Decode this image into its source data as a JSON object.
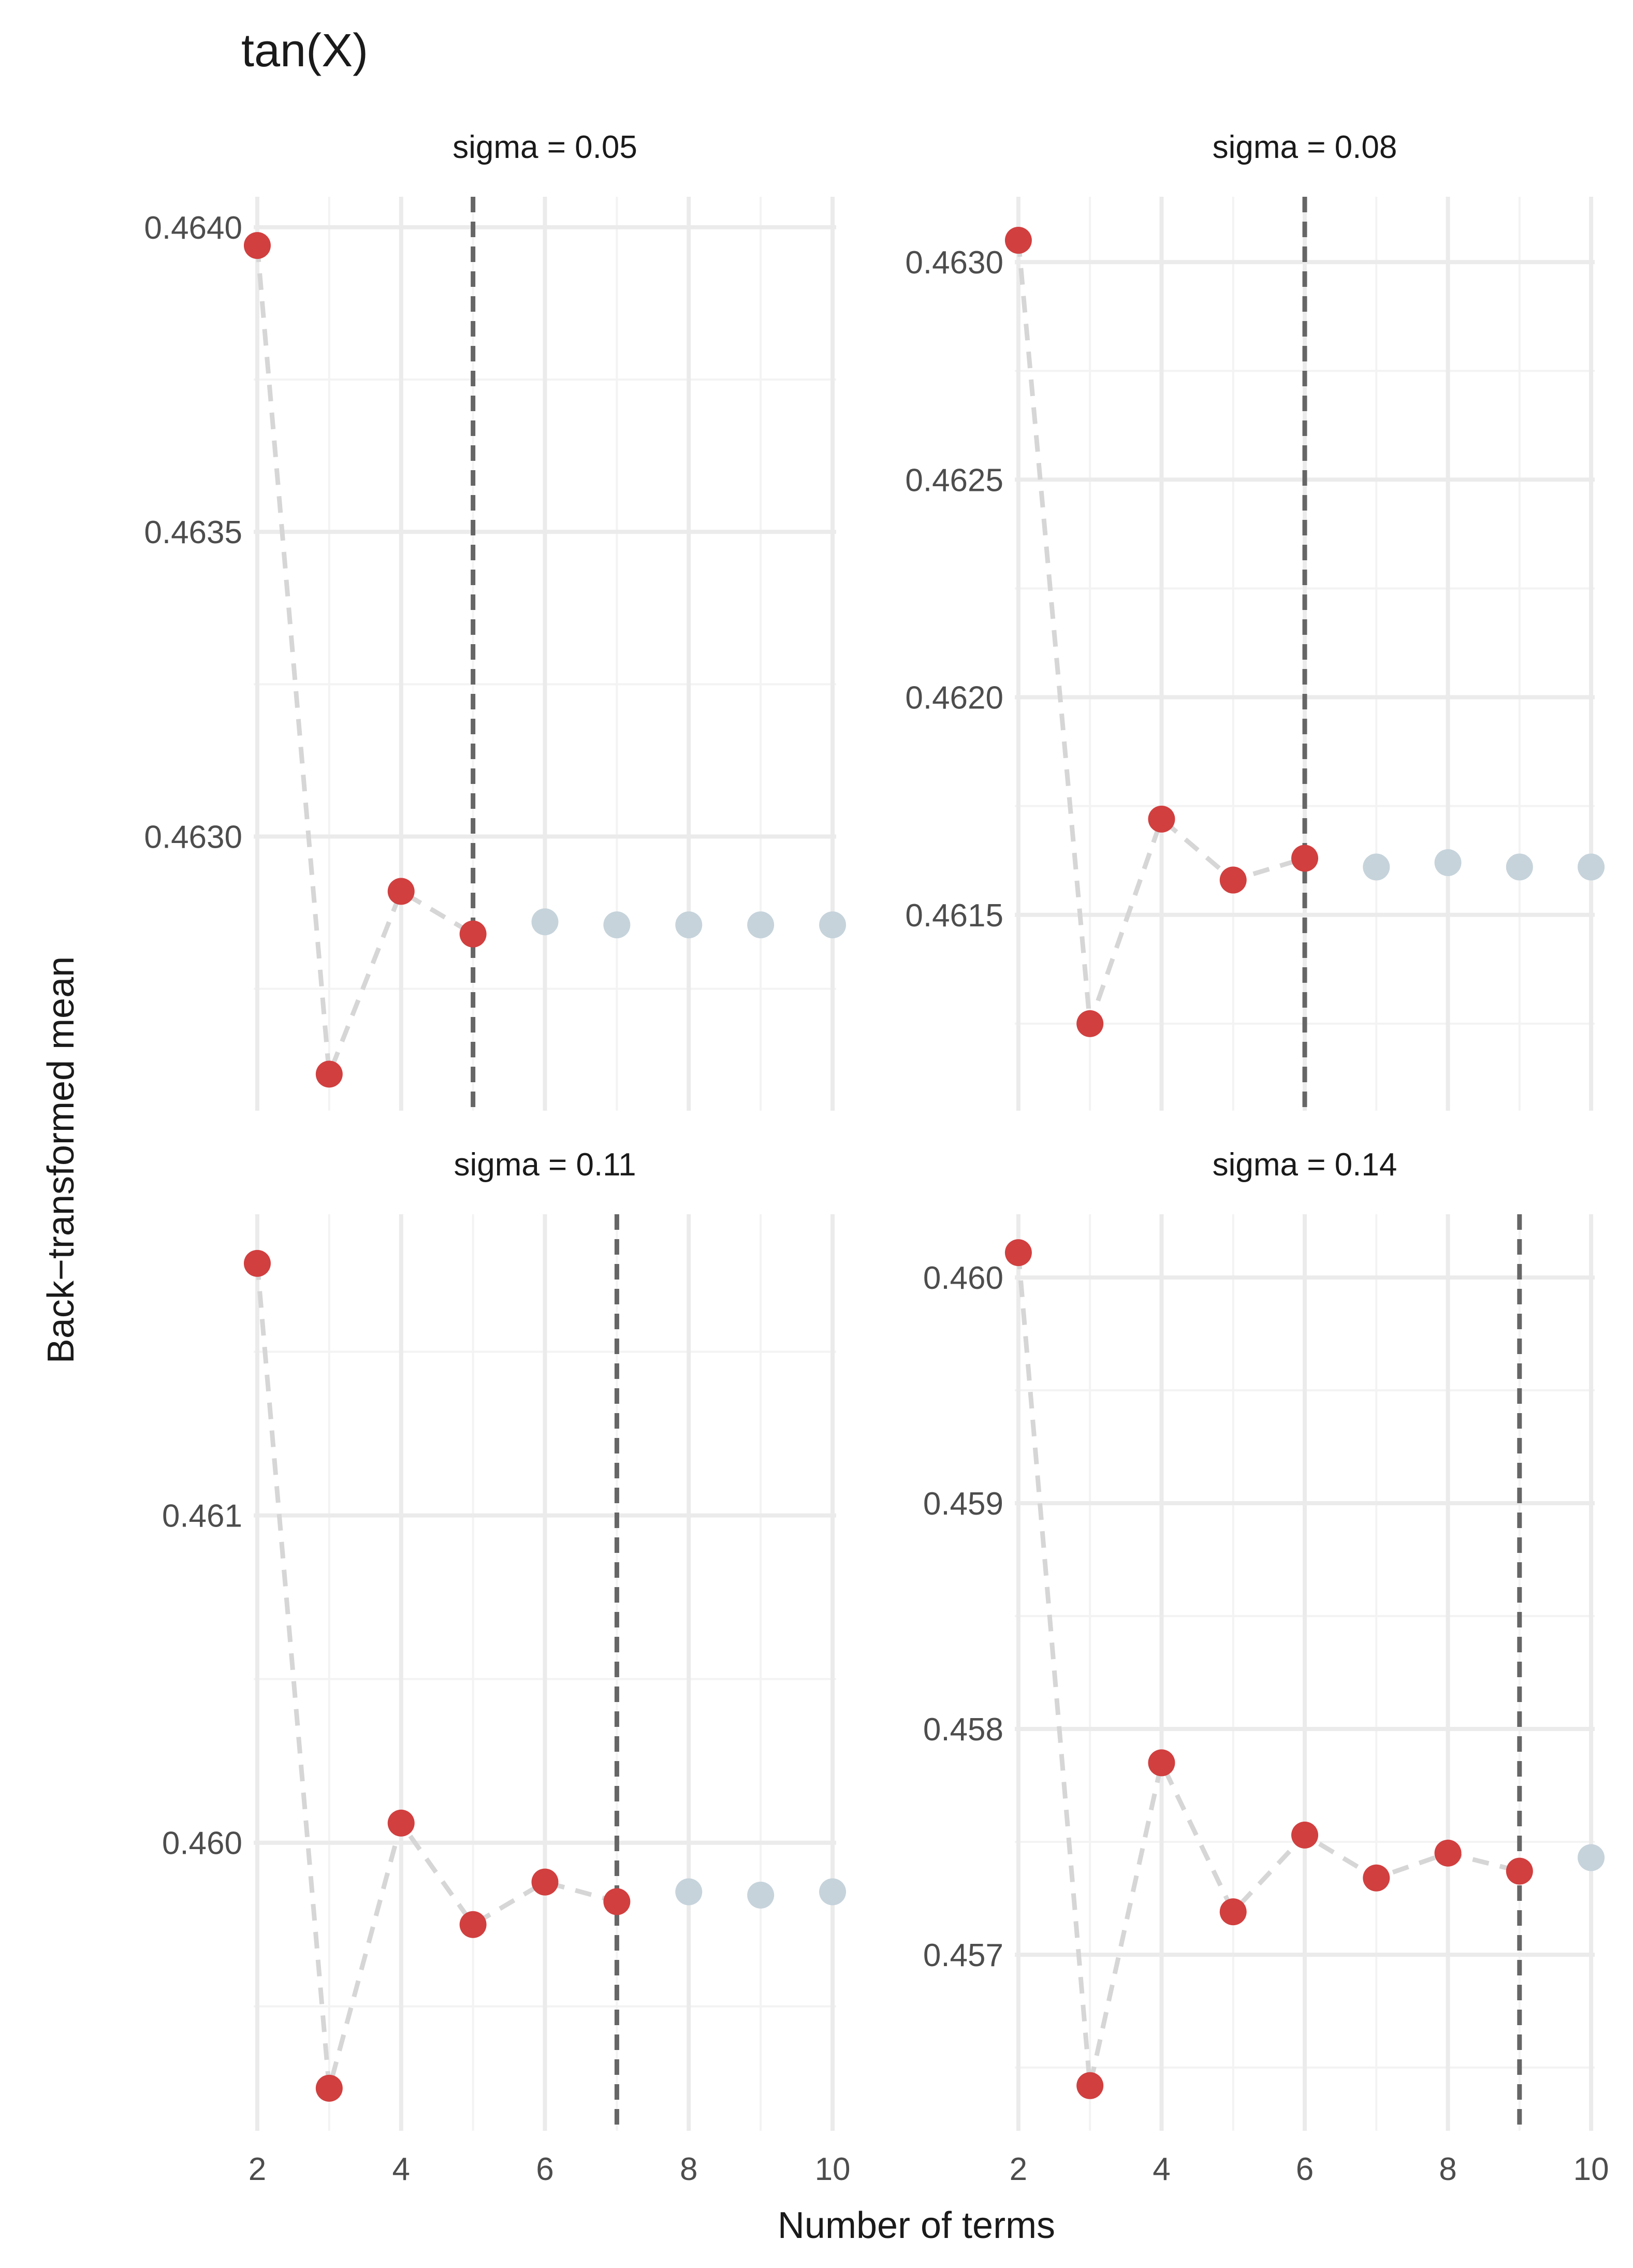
{
  "colors": {
    "highlight": "#d13f3f",
    "muted": "#c6d3db",
    "connector": "#d6d6d6",
    "cutoff": "#666666",
    "grid_major": "#ebebeb",
    "grid_minor": "#f3f3f3",
    "text": "#1a1a1a",
    "tick_text": "#4d4d4d"
  },
  "chart_data": {
    "type": "scatter",
    "title": "tan(X)",
    "xlabel": "Number of terms",
    "ylabel": "Back−transformed mean",
    "x_ticks": [
      2,
      4,
      6,
      8,
      10
    ],
    "xlim": [
      1.95,
      10.05
    ],
    "panels": [
      {
        "strip": "sigma = 0.05",
        "sigma": 0.05,
        "cutoff": 5,
        "ylim": [
          0.46255,
          0.46405
        ],
        "y_ticks": [
          0.463,
          0.4635,
          0.464
        ],
        "y_tick_labels": [
          "0.4630",
          "0.4635",
          "0.4640"
        ],
        "x": [
          2,
          3,
          4,
          5,
          6,
          7,
          8,
          9,
          10
        ],
        "y": [
          0.46397,
          0.46261,
          0.46291,
          0.46284,
          0.46286,
          0.462855,
          0.462855,
          0.462855,
          0.462855
        ]
      },
      {
        "strip": "sigma = 0.08",
        "sigma": 0.08,
        "cutoff": 6,
        "ylim": [
          0.46105,
          0.46315
        ],
        "y_ticks": [
          0.4615,
          0.462,
          0.4625,
          0.463
        ],
        "y_tick_labels": [
          "0.4615",
          "0.4620",
          "0.4625",
          "0.4630"
        ],
        "x": [
          2,
          3,
          4,
          5,
          6,
          7,
          8,
          9,
          10
        ],
        "y": [
          0.46305,
          0.46125,
          0.46172,
          0.46158,
          0.46163,
          0.46161,
          0.46162,
          0.46161,
          0.46161
        ]
      },
      {
        "strip": "sigma = 0.11",
        "sigma": 0.11,
        "cutoff": 7,
        "ylim": [
          0.45912,
          0.46192
        ],
        "y_ticks": [
          0.46,
          0.461
        ],
        "y_tick_labels": [
          "0.460",
          "0.461"
        ],
        "x": [
          2,
          3,
          4,
          5,
          6,
          7,
          8,
          9,
          10
        ],
        "y": [
          0.46177,
          0.45925,
          0.46006,
          0.45975,
          0.45988,
          0.45982,
          0.45985,
          0.45984,
          0.45985
        ]
      },
      {
        "strip": "sigma = 0.14",
        "sigma": 0.14,
        "cutoff": 9,
        "ylim": [
          0.45622,
          0.46028
        ],
        "y_ticks": [
          0.457,
          0.458,
          0.459,
          0.46
        ],
        "y_tick_labels": [
          "0.457",
          "0.458",
          "0.459",
          "0.460"
        ],
        "x": [
          2,
          3,
          4,
          5,
          6,
          7,
          8,
          9,
          10
        ],
        "y": [
          0.46011,
          0.45642,
          0.45785,
          0.45719,
          0.45753,
          0.45734,
          0.45745,
          0.45737,
          0.45743
        ]
      }
    ]
  }
}
